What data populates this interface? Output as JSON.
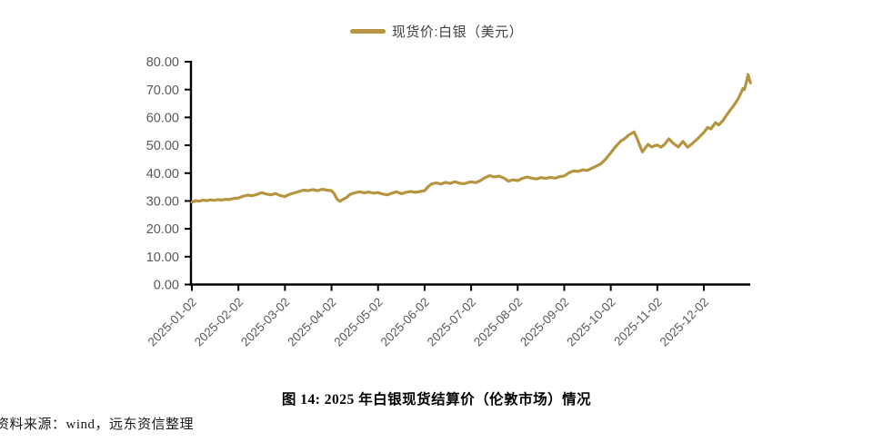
{
  "legend": {
    "label": "现货价:白银（美元）"
  },
  "title": {
    "text": "图 14: 2025 年白银现货结算价（伦敦市场）情况"
  },
  "source": {
    "text": "资料来源：wind，远东资信整理"
  },
  "colors": {
    "line": "#B7943F",
    "axis": "#000000",
    "tick_label": "#595959"
  },
  "chart_data": {
    "type": "line",
    "title": "图 14: 2025 年白银现货结算价（伦敦市场）情况",
    "series_name": "现货价:白银（美元）",
    "legend_position": "top-center",
    "grid": false,
    "ylim": [
      0,
      80
    ],
    "y_tick_labels": [
      "0.00",
      "10.00",
      "20.00",
      "30.00",
      "40.00",
      "50.00",
      "60.00",
      "70.00",
      "80.00"
    ],
    "x_tick_labels": [
      "2025-01-02",
      "2025-02-02",
      "2025-03-02",
      "2025-04-02",
      "2025-05-02",
      "2025-06-02",
      "2025-07-02",
      "2025-08-02",
      "2025-09-02",
      "2025-10-02",
      "2025-11-02",
      "2025-12-02"
    ],
    "x_unit": "months_from_2025-01-02",
    "points": [
      [
        0,
        29.6
      ],
      [
        0.08,
        30.1
      ],
      [
        0.16,
        29.9
      ],
      [
        0.24,
        30.3
      ],
      [
        0.32,
        30.1
      ],
      [
        0.4,
        30.4
      ],
      [
        0.48,
        30.2
      ],
      [
        0.56,
        30.5
      ],
      [
        0.64,
        30.3
      ],
      [
        0.72,
        30.6
      ],
      [
        0.8,
        30.5
      ],
      [
        0.9,
        30.9
      ],
      [
        1,
        31.1
      ],
      [
        1.1,
        31.7
      ],
      [
        1.2,
        32.1
      ],
      [
        1.3,
        31.9
      ],
      [
        1.4,
        32.4
      ],
      [
        1.5,
        33.0
      ],
      [
        1.6,
        32.5
      ],
      [
        1.7,
        32.2
      ],
      [
        1.8,
        32.7
      ],
      [
        1.9,
        31.9
      ],
      [
        2,
        31.6
      ],
      [
        2.1,
        32.4
      ],
      [
        2.2,
        32.9
      ],
      [
        2.3,
        33.4
      ],
      [
        2.4,
        33.9
      ],
      [
        2.5,
        33.7
      ],
      [
        2.6,
        34.1
      ],
      [
        2.7,
        33.7
      ],
      [
        2.8,
        34.2
      ],
      [
        2.9,
        33.9
      ],
      [
        3,
        33.7
      ],
      [
        3.06,
        32.6
      ],
      [
        3.12,
        30.6
      ],
      [
        3.18,
        29.9
      ],
      [
        3.25,
        30.6
      ],
      [
        3.32,
        31.2
      ],
      [
        3.4,
        32.4
      ],
      [
        3.5,
        32.9
      ],
      [
        3.6,
        33.3
      ],
      [
        3.7,
        32.9
      ],
      [
        3.8,
        33.2
      ],
      [
        3.9,
        32.8
      ],
      [
        4,
        33.0
      ],
      [
        4.1,
        32.5
      ],
      [
        4.2,
        32.2
      ],
      [
        4.3,
        32.8
      ],
      [
        4.4,
        33.3
      ],
      [
        4.5,
        32.6
      ],
      [
        4.6,
        33.1
      ],
      [
        4.7,
        33.4
      ],
      [
        4.8,
        33.1
      ],
      [
        4.9,
        33.4
      ],
      [
        5,
        33.7
      ],
      [
        5.08,
        35.2
      ],
      [
        5.15,
        36.1
      ],
      [
        5.25,
        36.5
      ],
      [
        5.35,
        36.1
      ],
      [
        5.45,
        36.7
      ],
      [
        5.55,
        36.3
      ],
      [
        5.65,
        36.9
      ],
      [
        5.75,
        36.4
      ],
      [
        5.85,
        36.2
      ],
      [
        5.95,
        36.7
      ],
      [
        6,
        36.9
      ],
      [
        6.1,
        36.6
      ],
      [
        6.2,
        37.3
      ],
      [
        6.3,
        38.4
      ],
      [
        6.4,
        39.1
      ],
      [
        6.5,
        38.6
      ],
      [
        6.6,
        38.9
      ],
      [
        6.7,
        38.3
      ],
      [
        6.8,
        37.1
      ],
      [
        6.9,
        37.6
      ],
      [
        7,
        37.3
      ],
      [
        7.1,
        38.1
      ],
      [
        7.2,
        38.6
      ],
      [
        7.3,
        38.2
      ],
      [
        7.4,
        37.9
      ],
      [
        7.5,
        38.4
      ],
      [
        7.6,
        38.1
      ],
      [
        7.7,
        38.5
      ],
      [
        7.8,
        38.2
      ],
      [
        7.9,
        38.7
      ],
      [
        8,
        39.0
      ],
      [
        8.1,
        40.1
      ],
      [
        8.2,
        40.8
      ],
      [
        8.3,
        40.6
      ],
      [
        8.4,
        41.2
      ],
      [
        8.5,
        41.0
      ],
      [
        8.6,
        41.8
      ],
      [
        8.7,
        42.6
      ],
      [
        8.8,
        43.5
      ],
      [
        8.9,
        45.2
      ],
      [
        9,
        47.3
      ],
      [
        9.07,
        48.8
      ],
      [
        9.15,
        50.3
      ],
      [
        9.22,
        51.6
      ],
      [
        9.3,
        52.4
      ],
      [
        9.38,
        53.6
      ],
      [
        9.45,
        54.3
      ],
      [
        9.5,
        54.8
      ],
      [
        9.57,
        52.3
      ],
      [
        9.63,
        49.6
      ],
      [
        9.68,
        47.6
      ],
      [
        9.75,
        49.2
      ],
      [
        9.8,
        50.3
      ],
      [
        9.88,
        49.4
      ],
      [
        9.95,
        49.9
      ],
      [
        10,
        50.1
      ],
      [
        10.08,
        49.3
      ],
      [
        10.15,
        50.2
      ],
      [
        10.25,
        52.3
      ],
      [
        10.35,
        50.6
      ],
      [
        10.45,
        49.4
      ],
      [
        10.55,
        51.4
      ],
      [
        10.65,
        49.3
      ],
      [
        10.75,
        50.6
      ],
      [
        10.85,
        52.1
      ],
      [
        10.95,
        53.8
      ],
      [
        11,
        54.6
      ],
      [
        11.08,
        56.4
      ],
      [
        11.15,
        55.9
      ],
      [
        11.25,
        58.1
      ],
      [
        11.32,
        57.3
      ],
      [
        11.4,
        58.7
      ],
      [
        11.48,
        60.6
      ],
      [
        11.55,
        62.3
      ],
      [
        11.62,
        63.8
      ],
      [
        11.68,
        65.2
      ],
      [
        11.74,
        66.8
      ],
      [
        11.8,
        68.9
      ],
      [
        11.84,
        70.4
      ],
      [
        11.87,
        70.0
      ],
      [
        11.9,
        71.8
      ],
      [
        11.95,
        75.4
      ],
      [
        12,
        72.4
      ]
    ]
  }
}
